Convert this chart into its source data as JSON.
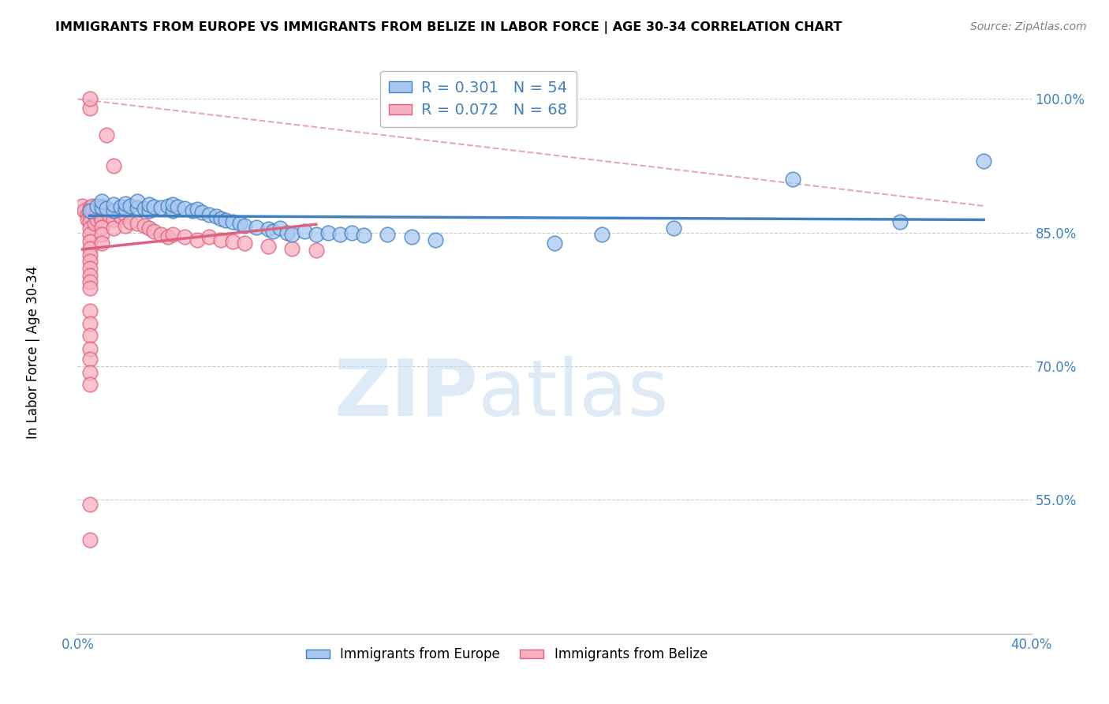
{
  "title": "IMMIGRANTS FROM EUROPE VS IMMIGRANTS FROM BELIZE IN LABOR FORCE | AGE 30-34 CORRELATION CHART",
  "source": "Source: ZipAtlas.com",
  "ylabel": "In Labor Force | Age 30-34",
  "xlim": [
    0.0,
    0.4
  ],
  "ylim": [
    0.4,
    1.04
  ],
  "xticks": [
    0.0,
    0.05,
    0.1,
    0.15,
    0.2,
    0.25,
    0.3,
    0.35,
    0.4
  ],
  "xticklabels": [
    "0.0%",
    "",
    "",
    "",
    "",
    "",
    "",
    "",
    "40.0%"
  ],
  "yticks": [
    0.55,
    0.7,
    0.85,
    1.0
  ],
  "yticklabels": [
    "55.0%",
    "70.0%",
    "85.0%",
    "100.0%"
  ],
  "legend_R_blue": "0.301",
  "legend_N_blue": "54",
  "legend_R_pink": "0.072",
  "legend_N_pink": "68",
  "blue_color": "#A8C8F0",
  "pink_color": "#F8B0C0",
  "blue_line_color": "#4080C0",
  "pink_line_color": "#E06080",
  "dashed_line_color": "#E090A0",
  "blue_scatter_x": [
    0.005,
    0.008,
    0.01,
    0.01,
    0.012,
    0.015,
    0.015,
    0.018,
    0.02,
    0.02,
    0.022,
    0.025,
    0.025,
    0.028,
    0.03,
    0.03,
    0.032,
    0.035,
    0.038,
    0.04,
    0.04,
    0.042,
    0.045,
    0.048,
    0.05,
    0.052,
    0.055,
    0.058,
    0.06,
    0.062,
    0.065,
    0.068,
    0.07,
    0.075,
    0.08,
    0.082,
    0.085,
    0.088,
    0.09,
    0.095,
    0.1,
    0.105,
    0.11,
    0.115,
    0.12,
    0.13,
    0.14,
    0.15,
    0.2,
    0.22,
    0.25,
    0.3,
    0.345,
    0.38
  ],
  "blue_scatter_y": [
    0.875,
    0.88,
    0.878,
    0.885,
    0.877,
    0.875,
    0.882,
    0.879,
    0.876,
    0.883,
    0.88,
    0.878,
    0.885,
    0.877,
    0.875,
    0.882,
    0.879,
    0.878,
    0.88,
    0.875,
    0.882,
    0.879,
    0.877,
    0.875,
    0.876,
    0.873,
    0.87,
    0.868,
    0.866,
    0.864,
    0.862,
    0.86,
    0.858,
    0.856,
    0.854,
    0.852,
    0.855,
    0.85,
    0.848,
    0.852,
    0.848,
    0.85,
    0.848,
    0.85,
    0.847,
    0.848,
    0.845,
    0.842,
    0.838,
    0.848,
    0.855,
    0.91,
    0.862,
    0.93
  ],
  "pink_scatter_x": [
    0.002,
    0.003,
    0.004,
    0.004,
    0.005,
    0.005,
    0.005,
    0.005,
    0.005,
    0.005,
    0.005,
    0.005,
    0.005,
    0.005,
    0.005,
    0.005,
    0.005,
    0.006,
    0.006,
    0.007,
    0.007,
    0.008,
    0.008,
    0.009,
    0.01,
    0.01,
    0.01,
    0.01,
    0.01,
    0.01,
    0.012,
    0.013,
    0.015,
    0.015,
    0.015,
    0.018,
    0.02,
    0.02,
    0.022,
    0.025,
    0.028,
    0.03,
    0.032,
    0.035,
    0.038,
    0.04,
    0.045,
    0.05,
    0.055,
    0.06,
    0.065,
    0.07,
    0.08,
    0.09,
    0.1,
    0.012,
    0.015,
    0.005,
    0.005,
    0.005,
    0.005,
    0.005,
    0.005,
    0.005,
    0.005,
    0.005,
    0.005,
    0.005
  ],
  "pink_scatter_y": [
    0.88,
    0.875,
    0.87,
    0.865,
    0.878,
    0.87,
    0.862,
    0.855,
    0.848,
    0.84,
    0.832,
    0.825,
    0.818,
    0.81,
    0.802,
    0.795,
    0.788,
    0.88,
    0.875,
    0.87,
    0.86,
    0.875,
    0.865,
    0.87,
    0.88,
    0.872,
    0.864,
    0.856,
    0.848,
    0.838,
    0.875,
    0.87,
    0.875,
    0.865,
    0.855,
    0.868,
    0.87,
    0.858,
    0.862,
    0.86,
    0.858,
    0.855,
    0.852,
    0.848,
    0.845,
    0.848,
    0.845,
    0.842,
    0.845,
    0.842,
    0.84,
    0.838,
    0.835,
    0.832,
    0.83,
    0.96,
    0.925,
    0.545,
    0.505,
    0.762,
    0.748,
    0.735,
    0.72,
    0.708,
    0.693,
    0.68,
    0.99,
    1.0
  ]
}
